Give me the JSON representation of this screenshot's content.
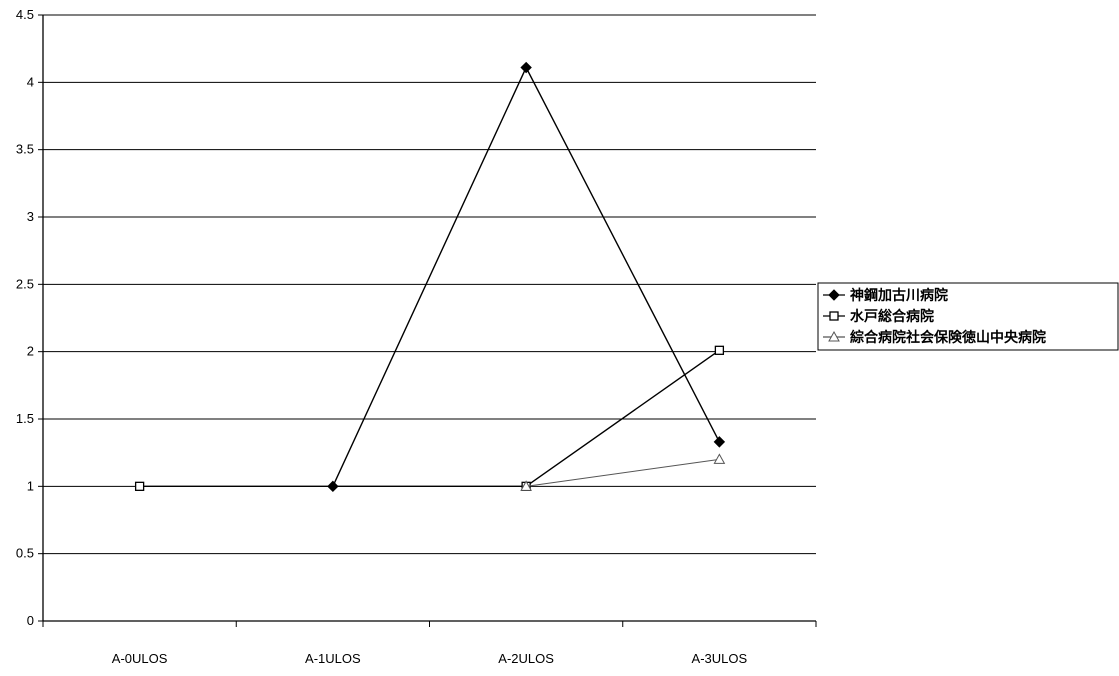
{
  "chart_data": {
    "type": "line",
    "title": "",
    "xlabel": "",
    "ylabel": "",
    "categories": [
      "A-0ULOS",
      "A-1ULOS",
      "A-2ULOS",
      "A-3ULOS"
    ],
    "ylim": [
      0,
      4.5
    ],
    "yticks": [
      "0",
      "0.5",
      "1",
      "1.5",
      "2",
      "2.5",
      "3",
      "3.5",
      "4",
      "4.5"
    ],
    "grid": true,
    "legend_position": "right",
    "series": [
      {
        "name": "神鋼加古川病院",
        "marker": "diamond-filled",
        "color": "#000000",
        "values": [
          null,
          1,
          4.11,
          1.33
        ]
      },
      {
        "name": "水戸総合病院",
        "marker": "square-open",
        "color": "#000000",
        "values": [
          1,
          null,
          1,
          2.01
        ]
      },
      {
        "name": "綜合病院社会保険徳山中央病院",
        "marker": "triangle-open",
        "color": "#555555",
        "values": [
          null,
          null,
          1,
          1.2
        ]
      }
    ]
  }
}
